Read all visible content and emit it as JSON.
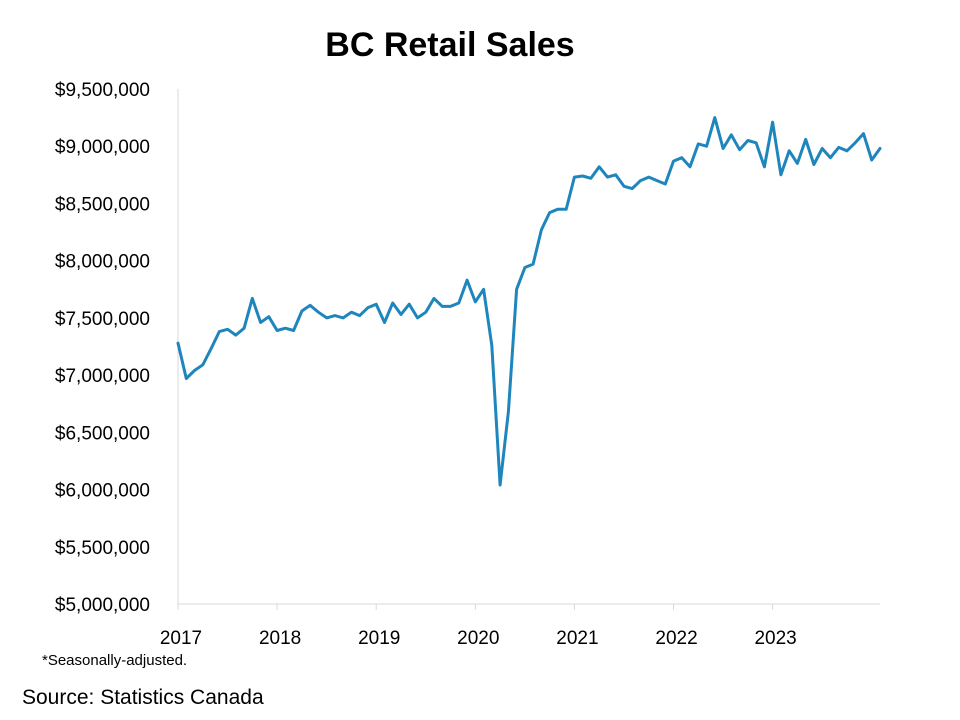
{
  "chart_data": {
    "type": "line",
    "title": "BC Retail Sales",
    "footnote": "*Seasonally-adjusted.",
    "source": "Source: Statistics Canada",
    "xlabel": "",
    "ylabel": "",
    "ylim": [
      5000000,
      9500000
    ],
    "y_ticks": [
      5000000,
      5500000,
      6000000,
      6500000,
      7000000,
      7500000,
      8000000,
      8500000,
      9000000,
      9500000
    ],
    "y_tick_labels": [
      "$5,000,000",
      "$5,500,000",
      "$6,000,000",
      "$6,500,000",
      "$7,000,000",
      "$7,500,000",
      "$8,000,000",
      "$8,500,000",
      "$9,000,000",
      "$9,500,000"
    ],
    "x_tick_labels": [
      "2017",
      "2018",
      "2019",
      "2020",
      "2021",
      "2022",
      "2023"
    ],
    "x_start": "2017-01",
    "x_end": "2024-02",
    "grid": false,
    "line_color": "#1f86bd",
    "series": [
      {
        "x": [
          "2017-01",
          "2017-02",
          "2017-03",
          "2017-04",
          "2017-05",
          "2017-06",
          "2017-07",
          "2017-08",
          "2017-09",
          "2017-10",
          "2017-11",
          "2017-12",
          "2018-01",
          "2018-02",
          "2018-03",
          "2018-04",
          "2018-05",
          "2018-06",
          "2018-07",
          "2018-08",
          "2018-09",
          "2018-10",
          "2018-11",
          "2018-12",
          "2019-01",
          "2019-02",
          "2019-03",
          "2019-04",
          "2019-05",
          "2019-06",
          "2019-07",
          "2019-08",
          "2019-09",
          "2019-10",
          "2019-11",
          "2019-12",
          "2020-01",
          "2020-02",
          "2020-03",
          "2020-04",
          "2020-05",
          "2020-06",
          "2020-07",
          "2020-08",
          "2020-09",
          "2020-10",
          "2020-11",
          "2020-12",
          "2021-01",
          "2021-02",
          "2021-03",
          "2021-04",
          "2021-05",
          "2021-06",
          "2021-07",
          "2021-08",
          "2021-09",
          "2021-10",
          "2021-11",
          "2021-12",
          "2022-01",
          "2022-02",
          "2022-03",
          "2022-04",
          "2022-05",
          "2022-06",
          "2022-07",
          "2022-08",
          "2022-09",
          "2022-10",
          "2022-11",
          "2022-12",
          "2023-01",
          "2023-02",
          "2023-03",
          "2023-04",
          "2023-05",
          "2023-06",
          "2023-07",
          "2023-08",
          "2023-09",
          "2023-10",
          "2023-11",
          "2023-12",
          "2024-01",
          "2024-02"
        ],
        "values": [
          7280000,
          6970000,
          7040000,
          7090000,
          7230000,
          7380000,
          7400000,
          7350000,
          7410000,
          7670000,
          7460000,
          7510000,
          7390000,
          7410000,
          7390000,
          7560000,
          7610000,
          7550000,
          7500000,
          7520000,
          7500000,
          7550000,
          7520000,
          7590000,
          7620000,
          7460000,
          7630000,
          7530000,
          7620000,
          7500000,
          7550000,
          7670000,
          7600000,
          7600000,
          7630000,
          7830000,
          7640000,
          7750000,
          7260000,
          6040000,
          6680000,
          7750000,
          7940000,
          7970000,
          8270000,
          8420000,
          8450000,
          8450000,
          8730000,
          8740000,
          8720000,
          8820000,
          8730000,
          8750000,
          8650000,
          8630000,
          8700000,
          8730000,
          8700000,
          8670000,
          8870000,
          8900000,
          8820000,
          9020000,
          9000000,
          9250000,
          8980000,
          9100000,
          8970000,
          9050000,
          9030000,
          8820000,
          9210000,
          8750000,
          8960000,
          8850000,
          9060000,
          8840000,
          8980000,
          8900000,
          8990000,
          8960000,
          9030000,
          9110000,
          8880000,
          8980000
        ]
      }
    ]
  }
}
